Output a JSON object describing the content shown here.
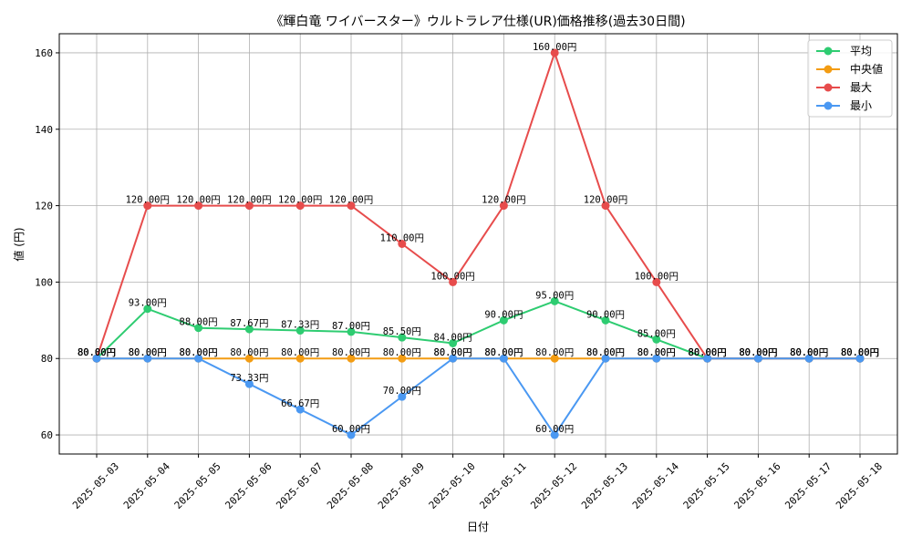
{
  "chart_data": {
    "type": "line",
    "title": "《輝白竜 ワイバースター》ウルトラレア仕様(UR)価格推移(過去30日間)",
    "xlabel": "日付",
    "ylabel": "値 (円)",
    "ylim": [
      55,
      165
    ],
    "yticks": [
      60,
      80,
      100,
      120,
      140,
      160
    ],
    "grid": true,
    "legend_position": "top-right",
    "label_suffix": "円",
    "categories": [
      "2025-05-03",
      "2025-05-04",
      "2025-05-05",
      "2025-05-06",
      "2025-05-07",
      "2025-05-08",
      "2025-05-09",
      "2025-05-10",
      "2025-05-11",
      "2025-05-12",
      "2025-05-13",
      "2025-05-14",
      "2025-05-15",
      "2025-05-16",
      "2025-05-17",
      "2025-05-18"
    ],
    "series": [
      {
        "name": "平均",
        "color": "#2ecc71",
        "values": [
          80,
          93,
          88,
          87.67,
          87.33,
          87,
          85.5,
          84,
          90,
          95,
          90,
          85,
          80,
          80,
          80,
          80
        ]
      },
      {
        "name": "中央値",
        "color": "#f39c12",
        "values": [
          80,
          80,
          80,
          80,
          80,
          80,
          80,
          80,
          80,
          80,
          80,
          80,
          80,
          80,
          80,
          80
        ]
      },
      {
        "name": "最大",
        "color": "#e74c4c",
        "values": [
          80,
          120,
          120,
          120,
          120,
          120,
          110,
          100,
          120,
          160,
          120,
          100,
          80,
          80,
          80,
          80
        ]
      },
      {
        "name": "最小",
        "color": "#4a98f2",
        "values": [
          80,
          80,
          80,
          73.33,
          66.67,
          60,
          70,
          80,
          80,
          60,
          80,
          80,
          80,
          80,
          80,
          80
        ]
      }
    ]
  }
}
